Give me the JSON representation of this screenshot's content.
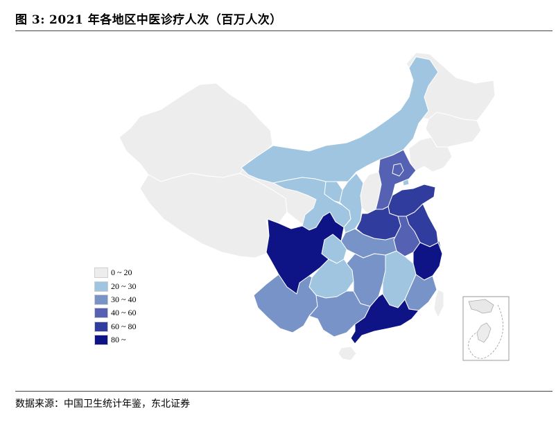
{
  "title": {
    "figure_label": "图 3:",
    "text": "2021 年各地区中医诊疗人次（百万人次）"
  },
  "source": "数据来源：中国卫生统计年鉴，东北证券",
  "colors": {
    "bin0": "#ededed",
    "bin1": "#9fc5e0",
    "bin2": "#7893c8",
    "bin3": "#5561b3",
    "bin4": "#303c9e",
    "bin5": "#0e1485",
    "border": "#ffffff",
    "inset": "#e8e8e8"
  },
  "legend": [
    {
      "label": "0 ~ 20",
      "bin": "bin0"
    },
    {
      "label": "20 ~ 30",
      "bin": "bin1"
    },
    {
      "label": "30 ~ 40",
      "bin": "bin2"
    },
    {
      "label": "40 ~ 60",
      "bin": "bin3"
    },
    {
      "label": "60 ~ 80",
      "bin": "bin4"
    },
    {
      "label": "80 ~",
      "bin": "bin5"
    }
  ],
  "regions": [
    {
      "name": "Xinjiang",
      "bin": "bin0"
    },
    {
      "name": "Tibet",
      "bin": "bin0"
    },
    {
      "name": "Qinghai",
      "bin": "bin0"
    },
    {
      "name": "Heilongjiang",
      "bin": "bin0"
    },
    {
      "name": "Jilin",
      "bin": "bin0"
    },
    {
      "name": "Liaoning",
      "bin": "bin0"
    },
    {
      "name": "Shanxi",
      "bin": "bin0"
    },
    {
      "name": "Hainan",
      "bin": "bin0"
    },
    {
      "name": "Taiwan",
      "bin": "bin0"
    },
    {
      "name": "Inner Mongolia",
      "bin": "bin1"
    },
    {
      "name": "Gansu",
      "bin": "bin1"
    },
    {
      "name": "Ningxia",
      "bin": "bin1"
    },
    {
      "name": "Shaanxi",
      "bin": "bin1"
    },
    {
      "name": "Tianjin",
      "bin": "bin1"
    },
    {
      "name": "Chongqing",
      "bin": "bin1"
    },
    {
      "name": "Guizhou",
      "bin": "bin1"
    },
    {
      "name": "Jiangxi",
      "bin": "bin1"
    },
    {
      "name": "Yunnan",
      "bin": "bin2"
    },
    {
      "name": "Guangxi",
      "bin": "bin2"
    },
    {
      "name": "Hunan",
      "bin": "bin2"
    },
    {
      "name": "Hubei",
      "bin": "bin2"
    },
    {
      "name": "Fujian",
      "bin": "bin2"
    },
    {
      "name": "Hebei",
      "bin": "bin3"
    },
    {
      "name": "Anhui",
      "bin": "bin3"
    },
    {
      "name": "Beijing",
      "bin": "bin3"
    },
    {
      "name": "Shanghai",
      "bin": "bin3"
    },
    {
      "name": "Shandong",
      "bin": "bin4"
    },
    {
      "name": "Henan",
      "bin": "bin4"
    },
    {
      "name": "Jiangsu",
      "bin": "bin4"
    },
    {
      "name": "Sichuan",
      "bin": "bin5"
    },
    {
      "name": "Zhejiang",
      "bin": "bin5"
    },
    {
      "name": "Guangdong",
      "bin": "bin5"
    }
  ]
}
